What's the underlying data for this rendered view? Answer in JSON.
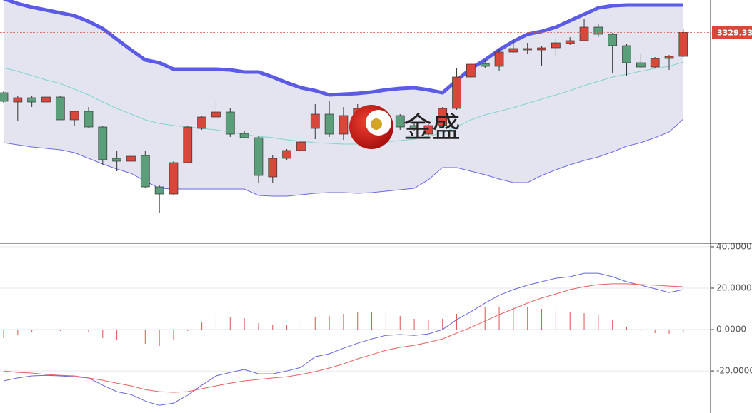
{
  "chart_data": [
    {
      "type": "candlestick",
      "watermark": "金盛",
      "up_color": "#d9473a",
      "down_color": "#5a9e7a",
      "open": [
        3287,
        3280.5,
        3283.5,
        3280.5,
        3284,
        3268,
        3274,
        3263,
        3241,
        3239,
        3243,
        3221,
        3216,
        3238,
        3262,
        3270,
        3273.5,
        3258.5,
        3255.5,
        3228,
        3241,
        3246.5,
        3262,
        3272,
        3258,
        3266,
        3276,
        3268,
        3271,
        3264,
        3258,
        3264,
        3276,
        3298,
        3307.5,
        3305.5,
        3315.5,
        3317,
        3317,
        3318.5,
        3321.5,
        3323.5,
        3333,
        3328,
        3320,
        3308,
        3305,
        3311,
        3312.5
      ],
      "high": [
        3288,
        3284.5,
        3284.5,
        3285,
        3285,
        3274.5,
        3277,
        3264,
        3246,
        3243,
        3246,
        3222,
        3239,
        3264,
        3271,
        3282,
        3276,
        3260.5,
        3257,
        3243,
        3247.5,
        3253.5,
        3279,
        3281,
        3277,
        3279,
        3278,
        3273,
        3272,
        3266,
        3265,
        3277,
        3304,
        3308,
        3310,
        3318,
        3324,
        3322,
        3319.5,
        3325,
        3326,
        3339,
        3335,
        3329,
        3321,
        3314,
        3312,
        3313.5,
        3332
      ],
      "low": [
        3280,
        3267,
        3277,
        3279.5,
        3268,
        3264,
        3262.5,
        3236,
        3232,
        3237,
        3220,
        3203,
        3215,
        3237.5,
        3261,
        3269.5,
        3256,
        3255,
        3224,
        3224,
        3240,
        3246,
        3254.5,
        3256,
        3254,
        3264,
        3268,
        3266,
        3261,
        3260,
        3257,
        3263,
        3275,
        3297,
        3304.5,
        3302,
        3314.5,
        3314,
        3306,
        3313,
        3320.5,
        3323,
        3326,
        3301,
        3299,
        3304,
        3304.5,
        3303,
        3312
      ],
      "close": [
        3281,
        3283.5,
        3280.5,
        3284,
        3268,
        3274,
        3263,
        3240,
        3239,
        3242.5,
        3221,
        3216,
        3238,
        3263,
        3270,
        3273.5,
        3258,
        3255.5,
        3229,
        3241,
        3246.5,
        3252.5,
        3272,
        3258,
        3271,
        3276,
        3270,
        3271,
        3263,
        3262,
        3264,
        3276,
        3298,
        3307,
        3305.5,
        3315.5,
        3318,
        3318,
        3318.5,
        3322,
        3323.5,
        3333,
        3328,
        3320,
        3308,
        3305,
        3311,
        3312.5,
        3329.33
      ],
      "series": [
        {
          "color": "#5b5be8",
          "values": [
            3353,
            3349.5,
            3347,
            3345,
            3343,
            3341,
            3337,
            3332,
            3324.5,
            3317,
            3310,
            3308,
            3303.5,
            3303.5,
            3303.5,
            3303.5,
            3303,
            3301.5,
            3301.5,
            3298,
            3294,
            3290.5,
            3288.5,
            3285.5,
            3286,
            3286.5,
            3287.5,
            3289,
            3290,
            3290.5,
            3289,
            3287,
            3295.5,
            3304,
            3310,
            3317,
            3323,
            3328,
            3330,
            3333,
            3337.5,
            3342,
            3346.5,
            3348,
            3348.5,
            3348.5,
            3348.5,
            3348.5,
            3348.5
          ]
        },
        {
          "color": "#7fd6c8",
          "values": [
            3304.5,
            3302,
            3299,
            3296,
            3293.5,
            3289.5,
            3285.5,
            3280.5,
            3276,
            3272,
            3268,
            3265.5,
            3264,
            3263,
            3262,
            3261,
            3259.5,
            3257.5,
            3256.5,
            3255.5,
            3254,
            3253,
            3252,
            3251.5,
            3251,
            3251,
            3251.5,
            3252.5,
            3253.5,
            3254.5,
            3256.5,
            3259,
            3263,
            3268,
            3271.5,
            3274,
            3276.5,
            3279.5,
            3282.5,
            3285.5,
            3288.5,
            3292,
            3295,
            3298,
            3300,
            3302,
            3304,
            3305.5,
            3308.5
          ]
        },
        {
          "color": "#6a6ae0",
          "values": [
            3252,
            3250.5,
            3249,
            3248,
            3247,
            3245,
            3241,
            3237,
            3233.5,
            3230.5,
            3225,
            3220,
            3219.5,
            3219.5,
            3219.5,
            3219.5,
            3219.5,
            3219.5,
            3215,
            3214.5,
            3214.5,
            3215.5,
            3216.5,
            3217,
            3217,
            3216.5,
            3217,
            3218,
            3219,
            3220,
            3226,
            3234.5,
            3234.5,
            3232,
            3229.5,
            3226.5,
            3224,
            3224,
            3229,
            3233,
            3236.5,
            3239.5,
            3242,
            3245.5,
            3249.5,
            3252,
            3255.5,
            3259.5,
            3268.5
          ]
        }
      ],
      "last_price": 3329.33,
      "ylim": [
        3182,
        3352
      ]
    },
    {
      "type": "macd",
      "histogram_color": "#e05050",
      "histogram": [
        -4,
        -2.8,
        -1.4,
        -0.3,
        -0.7,
        -0.3,
        -1.4,
        -4.1,
        -4.8,
        -5.2,
        -6.9,
        -7.9,
        -5.2,
        -0.7,
        3.4,
        5.9,
        6.2,
        5.5,
        3.1,
        2.1,
        2.4,
        3.8,
        5.9,
        6.6,
        7.6,
        8.6,
        8.3,
        7.9,
        6.6,
        5.2,
        4.8,
        5.2,
        7.6,
        9.7,
        10.7,
        11,
        11,
        10.7,
        10,
        9,
        8.6,
        7.9,
        6.9,
        4.5,
        1.4,
        -0.7,
        -1.7,
        -2.1,
        -1.4
      ],
      "series": [
        {
          "color": "#6666dd",
          "values": [
            -24.8,
            -23.4,
            -22.4,
            -22.1,
            -22.4,
            -22.8,
            -23.4,
            -26.9,
            -30,
            -31.4,
            -34.5,
            -36.6,
            -35.5,
            -31.7,
            -26.9,
            -22.4,
            -20.7,
            -19.3,
            -21.4,
            -21.4,
            -20,
            -18.3,
            -13.1,
            -11.7,
            -9,
            -6.6,
            -4.5,
            -2.8,
            -2.4,
            -2.8,
            -2.1,
            0,
            4.8,
            8.6,
            12.8,
            16.6,
            19.3,
            21.4,
            23.1,
            24.8,
            25.5,
            27.2,
            27.2,
            25.5,
            23.1,
            21.4,
            19.7,
            17.9,
            19.3
          ]
        },
        {
          "color": "#e86060",
          "values": [
            -20,
            -20.7,
            -21,
            -21.7,
            -22.1,
            -22.4,
            -23.4,
            -24.5,
            -25.9,
            -27.2,
            -29,
            -30,
            -30.3,
            -30,
            -28.6,
            -27.2,
            -25.9,
            -24.8,
            -24.1,
            -23.4,
            -22.8,
            -21.7,
            -20.3,
            -18.6,
            -16.6,
            -14.1,
            -12.1,
            -10,
            -8.6,
            -7.6,
            -6.2,
            -4.5,
            -1.7,
            1,
            4.1,
            7.2,
            10,
            12.8,
            15.2,
            17.2,
            19.3,
            20.7,
            21.7,
            22.1,
            22.1,
            21.7,
            21.4,
            21,
            20.7
          ]
        }
      ],
      "ylim": [
        -40.3,
        41.7
      ],
      "yticks": [
        {
          "value": 40,
          "label": "40.0000"
        },
        {
          "value": 20,
          "label": "20.0000"
        },
        {
          "value": 0,
          "label": "0.0000"
        },
        {
          "value": -20,
          "label": "-20.0000"
        }
      ],
      "grid": true
    }
  ]
}
